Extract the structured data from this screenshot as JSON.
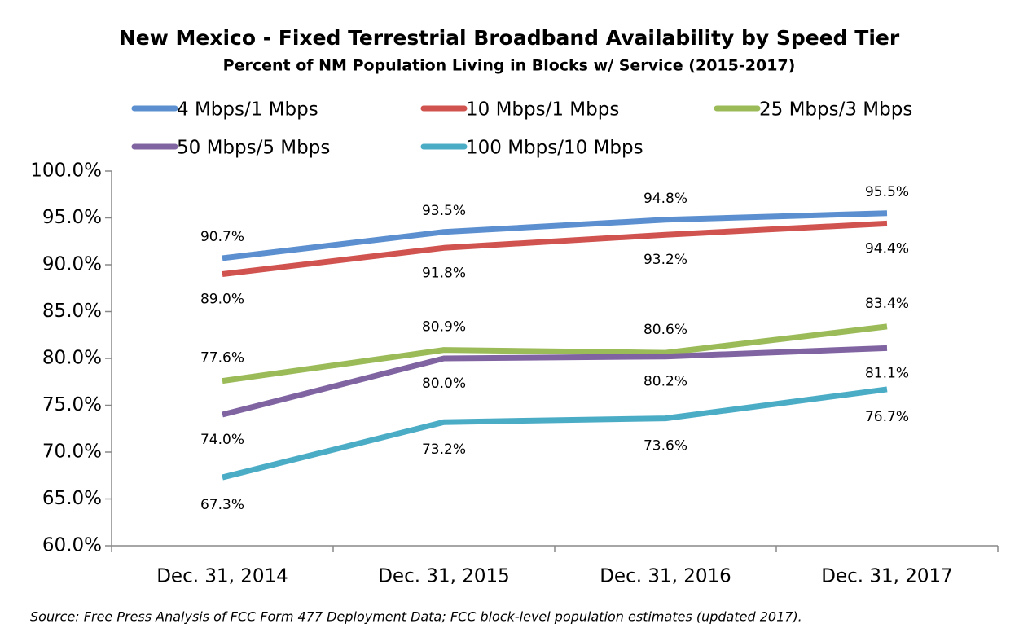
{
  "chart_data": {
    "type": "line",
    "title": "New Mexico - Fixed Terrestrial Broadband Availability by Speed Tier",
    "subtitle": "Percent of NM Population Living in Blocks w/ Service (2015-2017)",
    "source": "Source: Free Press Analysis of FCC Form 477 Deployment Data; FCC block-level population estimates (updated  2017).",
    "categories": [
      "Dec. 31, 2014",
      "Dec. 31, 2015",
      "Dec. 31, 2016",
      "Dec. 31, 2017"
    ],
    "series": [
      {
        "name": "4 Mbps/1 Mbps",
        "color": "#5b8fcf",
        "values": [
          90.7,
          93.5,
          94.8,
          95.5
        ],
        "value_labels": [
          "90.7%",
          "93.5%",
          "94.8%",
          "95.5%"
        ]
      },
      {
        "name": "10 Mbps/1 Mbps",
        "color": "#d0534f",
        "values": [
          89.0,
          91.8,
          93.2,
          94.4
        ],
        "value_labels": [
          "89.0%",
          "91.8%",
          "93.2%",
          "94.4%"
        ]
      },
      {
        "name": "25 Mbps/3 Mbps",
        "color": "#9bbb59",
        "values": [
          77.6,
          80.9,
          80.6,
          83.4
        ],
        "value_labels": [
          "77.6%",
          "80.9%",
          "80.6%",
          "83.4%"
        ]
      },
      {
        "name": "50 Mbps/5 Mbps",
        "color": "#8064a2",
        "values": [
          74.0,
          80.0,
          80.2,
          81.1
        ],
        "value_labels": [
          "74.0%",
          "80.0%",
          "80.2%",
          "81.1%"
        ]
      },
      {
        "name": "100 Mbps/10 Mbps",
        "color": "#4bacc6",
        "values": [
          67.3,
          73.2,
          73.6,
          76.7
        ],
        "value_labels": [
          "67.3%",
          "73.2%",
          "73.6%",
          "76.7%"
        ]
      }
    ],
    "ylim": [
      60,
      100
    ],
    "yticks": [
      {
        "value": 60,
        "label": "60.0%"
      },
      {
        "value": 65,
        "label": "65.0%"
      },
      {
        "value": 70,
        "label": "70.0%"
      },
      {
        "value": 75,
        "label": "75.0%"
      },
      {
        "value": 80,
        "label": "80.0%"
      },
      {
        "value": 85,
        "label": "85.0%"
      },
      {
        "value": 90,
        "label": "90.0%"
      },
      {
        "value": 95,
        "label": "95.0%"
      },
      {
        "value": 100,
        "label": "100.0%"
      }
    ],
    "grid": false
  }
}
